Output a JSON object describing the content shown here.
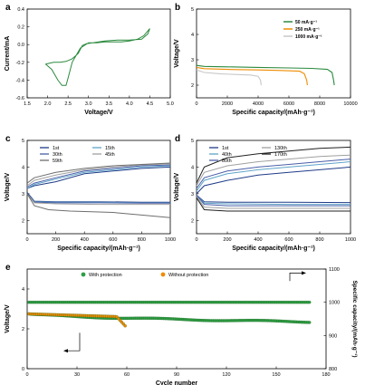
{
  "chart_data": [
    {
      "type": "line",
      "panel": "a",
      "xlabel": "Voltage/V",
      "ylabel": "Current/mA",
      "xlim": [
        1.5,
        5.0
      ],
      "ylim": [
        -0.6,
        0.4
      ],
      "xticks": [
        "1.5",
        "2.0",
        "2.5",
        "3.0",
        "3.5",
        "4.0",
        "4.5",
        "5.0"
      ],
      "yticks": [
        "-0.6",
        "-0.4",
        "-0.2",
        "0.0",
        "0.2",
        "0.4"
      ],
      "series": [
        {
          "color": "#2b8a3e",
          "x": [
            1.95,
            2.1,
            2.25,
            2.35,
            2.45,
            2.5,
            2.6,
            2.8,
            3.0,
            3.2,
            3.4,
            3.6,
            3.8,
            4.0,
            4.2,
            4.35,
            4.5,
            4.45,
            4.3,
            4.0,
            3.7,
            3.4,
            3.1,
            2.95,
            2.85,
            2.75,
            2.6,
            2.45,
            2.3,
            2.15,
            1.95
          ],
          "y": [
            -0.22,
            -0.28,
            -0.4,
            -0.46,
            -0.46,
            -0.38,
            -0.2,
            -0.04,
            0.02,
            0.02,
            0.03,
            0.03,
            0.03,
            0.04,
            0.06,
            0.1,
            0.18,
            0.12,
            0.06,
            0.05,
            0.05,
            0.04,
            0.02,
            0.01,
            -0.01,
            -0.1,
            -0.16,
            -0.19,
            -0.2,
            -0.2,
            -0.22
          ]
        }
      ]
    },
    {
      "type": "line",
      "panel": "b",
      "xlabel": "Specific capacity/(mAh·g⁻¹)",
      "ylabel": "Voltage/V",
      "xlim": [
        0,
        10000
      ],
      "ylim": [
        1.5,
        5
      ],
      "xticks": [
        "0",
        "2000",
        "4000",
        "6000",
        "8000",
        "10000"
      ],
      "yticks": [
        "2",
        "3",
        "4",
        "5"
      ],
      "legend_position": "top-right",
      "series": [
        {
          "name": "50 mA·g⁻¹",
          "color": "#2b8a3e",
          "x": [
            0,
            500,
            2000,
            4000,
            6000,
            7500,
            8500,
            8800,
            8900,
            8950
          ],
          "y": [
            2.78,
            2.74,
            2.72,
            2.7,
            2.68,
            2.66,
            2.62,
            2.5,
            2.2,
            2.0
          ]
        },
        {
          "name": "250 mA·g⁻¹",
          "color": "#f08c00",
          "x": [
            0,
            500,
            2000,
            4000,
            5500,
            6700,
            7000,
            7150,
            7200
          ],
          "y": [
            2.7,
            2.65,
            2.62,
            2.6,
            2.58,
            2.55,
            2.45,
            2.2,
            2.0
          ]
        },
        {
          "name": "1000 mA·g⁻¹",
          "color": "#c8c8c8",
          "x": [
            0,
            500,
            1500,
            2500,
            3500,
            4000,
            4150,
            4200
          ],
          "y": [
            2.6,
            2.5,
            2.45,
            2.42,
            2.4,
            2.35,
            2.2,
            2.0
          ]
        }
      ]
    },
    {
      "type": "line",
      "panel": "c",
      "xlabel": "Specific capacity/(mAh·g⁻¹)",
      "ylabel": "Voltage/V",
      "xlim": [
        0,
        1000
      ],
      "ylim": [
        1.5,
        5
      ],
      "xticks": [
        "0",
        "200",
        "400",
        "600",
        "800",
        "1000"
      ],
      "yticks": [
        "2",
        "3",
        "4",
        "5"
      ],
      "legend_position": "top",
      "series": [
        {
          "name": "1st",
          "color": "#1f3c88",
          "charge": [
            [
              0,
              3.2
            ],
            [
              50,
              3.3
            ],
            [
              200,
              3.45
            ],
            [
              400,
              3.75
            ],
            [
              600,
              3.85
            ],
            [
              800,
              3.95
            ],
            [
              1000,
              4.0
            ]
          ],
          "discharge": [
            [
              0,
              3.05
            ],
            [
              50,
              2.72
            ],
            [
              200,
              2.7
            ],
            [
              500,
              2.7
            ],
            [
              800,
              2.68
            ],
            [
              1000,
              2.68
            ]
          ]
        },
        {
          "name": "15th",
          "color": "#5fa3c9",
          "charge": [
            [
              0,
              3.2
            ],
            [
              50,
              3.35
            ],
            [
              200,
              3.55
            ],
            [
              400,
              3.8
            ],
            [
              600,
              3.9
            ],
            [
              800,
              4.0
            ],
            [
              1000,
              4.05
            ]
          ],
          "discharge": [
            [
              0,
              3.0
            ],
            [
              50,
              2.7
            ],
            [
              200,
              2.68
            ],
            [
              500,
              2.68
            ],
            [
              800,
              2.66
            ],
            [
              1000,
              2.66
            ]
          ]
        },
        {
          "name": "30th",
          "color": "#4a5fa8",
          "charge": [
            [
              0,
              3.25
            ],
            [
              50,
              3.4
            ],
            [
              200,
              3.6
            ],
            [
              400,
              3.85
            ],
            [
              600,
              3.95
            ],
            [
              800,
              4.05
            ],
            [
              1000,
              4.08
            ]
          ],
          "discharge": [
            [
              0,
              3.0
            ],
            [
              50,
              2.68
            ],
            [
              200,
              2.66
            ],
            [
              500,
              2.66
            ],
            [
              800,
              2.65
            ],
            [
              1000,
              2.65
            ]
          ]
        },
        {
          "name": "45th",
          "color": "#a0a0a0",
          "charge": [
            [
              0,
              3.3
            ],
            [
              50,
              3.5
            ],
            [
              200,
              3.7
            ],
            [
              400,
              3.9
            ],
            [
              600,
              4.0
            ],
            [
              800,
              4.08
            ],
            [
              1000,
              4.12
            ]
          ],
          "discharge": [
            [
              0,
              3.0
            ],
            [
              50,
              2.66
            ],
            [
              200,
              2.62
            ],
            [
              500,
              2.6
            ],
            [
              800,
              2.6
            ],
            [
              1000,
              2.6
            ]
          ]
        },
        {
          "name": "59th",
          "color": "#6e6e6e",
          "charge": [
            [
              0,
              3.4
            ],
            [
              50,
              3.6
            ],
            [
              200,
              3.8
            ],
            [
              400,
              3.95
            ],
            [
              600,
              4.05
            ],
            [
              800,
              4.1
            ],
            [
              1000,
              4.15
            ]
          ],
          "discharge": [
            [
              0,
              3.0
            ],
            [
              50,
              2.55
            ],
            [
              150,
              2.4
            ],
            [
              300,
              2.35
            ],
            [
              600,
              2.3
            ],
            [
              800,
              2.2
            ],
            [
              1000,
              2.1
            ]
          ]
        }
      ]
    },
    {
      "type": "line",
      "panel": "d",
      "xlabel": "Specific capacity/(mAh·g⁻¹)",
      "ylabel": "Voltage/V",
      "xlim": [
        0,
        1000
      ],
      "ylim": [
        1.5,
        5
      ],
      "xticks": [
        "0",
        "200",
        "400",
        "600",
        "800",
        "1000"
      ],
      "yticks": [
        "2",
        "3",
        "4",
        "5"
      ],
      "legend_position": "top",
      "series": [
        {
          "name": "1st",
          "color": "#1f3c88",
          "charge": [
            [
              0,
              3.0
            ],
            [
              50,
              3.3
            ],
            [
              200,
              3.5
            ],
            [
              400,
              3.7
            ],
            [
              600,
              3.8
            ],
            [
              800,
              3.9
            ],
            [
              1000,
              4.0
            ]
          ],
          "discharge": [
            [
              0,
              2.95
            ],
            [
              50,
              2.7
            ],
            [
              200,
              2.68
            ],
            [
              600,
              2.68
            ],
            [
              1000,
              2.67
            ]
          ]
        },
        {
          "name": "40th",
          "color": "#5fa3c9",
          "charge": [
            [
              0,
              3.1
            ],
            [
              50,
              3.5
            ],
            [
              200,
              3.75
            ],
            [
              400,
              3.9
            ],
            [
              600,
              4.0
            ],
            [
              800,
              4.1
            ],
            [
              1000,
              4.2
            ]
          ],
          "discharge": [
            [
              0,
              2.95
            ],
            [
              50,
              2.65
            ],
            [
              200,
              2.62
            ],
            [
              600,
              2.6
            ],
            [
              1000,
              2.6
            ]
          ]
        },
        {
          "name": "80th",
          "color": "#4a5fa8",
          "charge": [
            [
              0,
              3.2
            ],
            [
              50,
              3.6
            ],
            [
              200,
              3.85
            ],
            [
              400,
              4.0
            ],
            [
              600,
              4.1
            ],
            [
              800,
              4.2
            ],
            [
              1000,
              4.3
            ]
          ],
          "discharge": [
            [
              0,
              2.95
            ],
            [
              50,
              2.6
            ],
            [
              200,
              2.55
            ],
            [
              600,
              2.55
            ],
            [
              1000,
              2.55
            ]
          ]
        },
        {
          "name": "130th",
          "color": "#a0a0a0",
          "charge": [
            [
              0,
              3.3
            ],
            [
              50,
              3.8
            ],
            [
              200,
              4.05
            ],
            [
              400,
              4.2
            ],
            [
              600,
              4.3
            ],
            [
              800,
              4.4
            ],
            [
              1000,
              4.45
            ]
          ],
          "discharge": [
            [
              0,
              2.9
            ],
            [
              50,
              2.5
            ],
            [
              200,
              2.45
            ],
            [
              600,
              2.45
            ],
            [
              1000,
              2.45
            ]
          ]
        },
        {
          "name": "170th",
          "color": "#222222",
          "charge": [
            [
              0,
              3.4
            ],
            [
              50,
              4.0
            ],
            [
              200,
              4.35
            ],
            [
              400,
              4.5
            ],
            [
              600,
              4.6
            ],
            [
              800,
              4.7
            ],
            [
              1000,
              4.75
            ]
          ],
          "discharge": [
            [
              0,
              2.85
            ],
            [
              50,
              2.4
            ],
            [
              200,
              2.35
            ],
            [
              600,
              2.35
            ],
            [
              1000,
              2.35
            ]
          ]
        }
      ]
    },
    {
      "type": "scatter",
      "panel": "e",
      "xlabel": "Cycle number",
      "ylabel": "Voltage/V",
      "ylabel_right": "Specific capacity/(mAh·g⁻¹)",
      "xlim": [
        0,
        180
      ],
      "ylim": [
        0,
        5
      ],
      "ylim_right": [
        800,
        1100
      ],
      "xticks": [
        "0",
        "30",
        "60",
        "90",
        "120",
        "150",
        "180"
      ],
      "yticks": [
        "0",
        "2",
        "4"
      ],
      "yticks_right": [
        "800",
        "900",
        "1000",
        "1100"
      ],
      "legend_position": "top",
      "series": [
        {
          "name": "With protection",
          "color": "#2f9e44",
          "axis": "left",
          "x_start": 1,
          "x_end": 170,
          "y_start": 2.75,
          "y_end": 2.35
        },
        {
          "name": "Without protection",
          "color": "#f08c00",
          "axis": "left",
          "x_start": 1,
          "x_end": 59,
          "y_start": 2.75,
          "y_end": 2.1
        },
        {
          "name": "capacity",
          "color": "#2f9e44",
          "axis": "right",
          "x_start": 1,
          "x_end": 170,
          "y_start": 1000,
          "y_end": 1000
        }
      ]
    }
  ],
  "panels": {
    "a": {
      "letter": "a"
    },
    "b": {
      "letter": "b"
    },
    "c": {
      "letter": "c"
    },
    "d": {
      "letter": "d"
    },
    "e": {
      "letter": "e"
    }
  }
}
